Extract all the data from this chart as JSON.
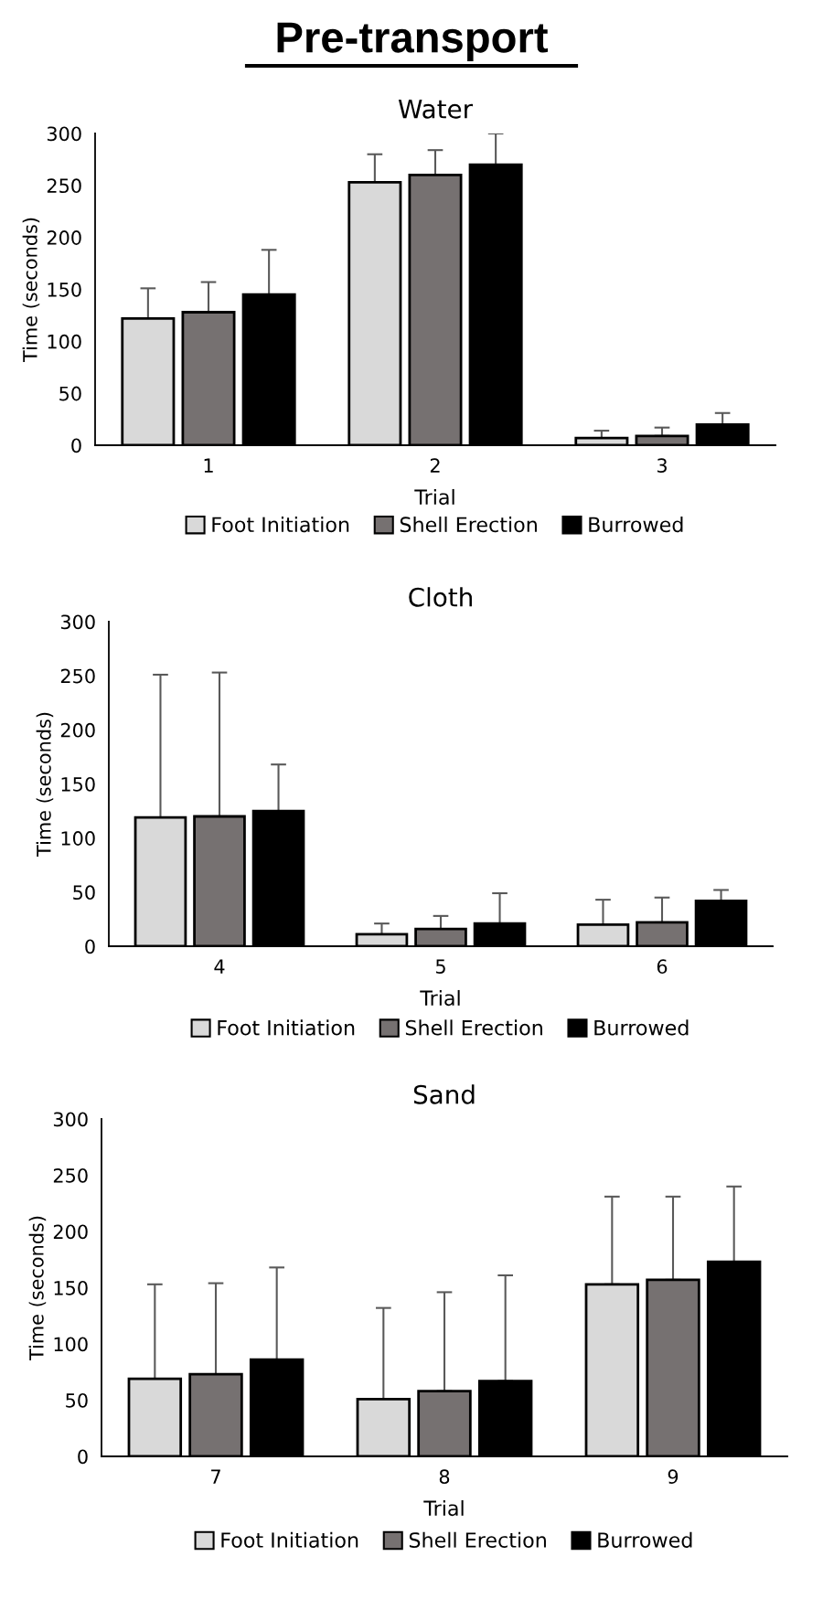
{
  "chart_data": [
    {
      "type": "bar",
      "title": "Water",
      "xlabel": "Trial",
      "ylabel": "Time (seconds)",
      "annotations": [
        "Pre-transport"
      ],
      "categories": [
        "1",
        "2",
        "3"
      ],
      "ylim": [
        0,
        300
      ],
      "yticks": [
        0,
        50,
        100,
        150,
        200,
        250,
        300
      ],
      "grid": false,
      "legend": "bottom",
      "series": [
        {
          "name": "Foot Initiation",
          "color": "#d9d9d9",
          "values": [
            122,
            253,
            7
          ],
          "errors": [
            [
              122,
              151
            ],
            [
              253,
              280
            ],
            [
              7,
              14
            ]
          ]
        },
        {
          "name": "Shell Erection",
          "color": "#767171",
          "values": [
            128,
            260,
            9
          ],
          "errors": [
            [
              128,
              157
            ],
            [
              260,
              284
            ],
            [
              9,
              17
            ]
          ]
        },
        {
          "name": "Burrowed",
          "color": "#000000",
          "values": [
            145,
            270,
            20
          ],
          "errors": [
            [
              145,
              188
            ],
            [
              270,
              300
            ],
            [
              20,
              31
            ]
          ]
        }
      ]
    },
    {
      "type": "bar",
      "title": "Cloth",
      "xlabel": "Trial",
      "ylabel": "Time (seconds)",
      "categories": [
        "4",
        "5",
        "6"
      ],
      "ylim": [
        0,
        300
      ],
      "yticks": [
        0,
        50,
        100,
        150,
        200,
        250,
        300
      ],
      "grid": false,
      "legend": "bottom",
      "series": [
        {
          "name": "Foot Initiation",
          "color": "#d9d9d9",
          "values": [
            119,
            11,
            20
          ],
          "errors": [
            [
              119,
              251
            ],
            [
              11,
              21
            ],
            [
              20,
              43
            ]
          ]
        },
        {
          "name": "Shell Erection",
          "color": "#767171",
          "values": [
            120,
            16,
            22
          ],
          "errors": [
            [
              120,
              253
            ],
            [
              16,
              28
            ],
            [
              22,
              45
            ]
          ]
        },
        {
          "name": "Burrowed",
          "color": "#000000",
          "values": [
            125,
            21,
            42
          ],
          "errors": [
            [
              125,
              168
            ],
            [
              21,
              49
            ],
            [
              42,
              52
            ]
          ]
        }
      ]
    },
    {
      "type": "bar",
      "title": "Sand",
      "xlabel": "Trial",
      "ylabel": "Time (seconds)",
      "categories": [
        "7",
        "8",
        "9"
      ],
      "ylim": [
        0,
        300
      ],
      "yticks": [
        0,
        50,
        100,
        150,
        200,
        250,
        300
      ],
      "grid": false,
      "legend": "bottom",
      "series": [
        {
          "name": "Foot Initiation",
          "color": "#d9d9d9",
          "values": [
            69,
            51,
            153
          ],
          "errors": [
            [
              69,
              153
            ],
            [
              51,
              132
            ],
            [
              153,
              231
            ]
          ]
        },
        {
          "name": "Shell Erection",
          "color": "#767171",
          "values": [
            73,
            58,
            157
          ],
          "errors": [
            [
              73,
              154
            ],
            [
              58,
              146
            ],
            [
              157,
              231
            ]
          ]
        },
        {
          "name": "Burrowed",
          "color": "#000000",
          "values": [
            86,
            67,
            173
          ],
          "errors": [
            [
              86,
              168
            ],
            [
              67,
              161
            ],
            [
              173,
              240
            ]
          ]
        }
      ]
    }
  ]
}
